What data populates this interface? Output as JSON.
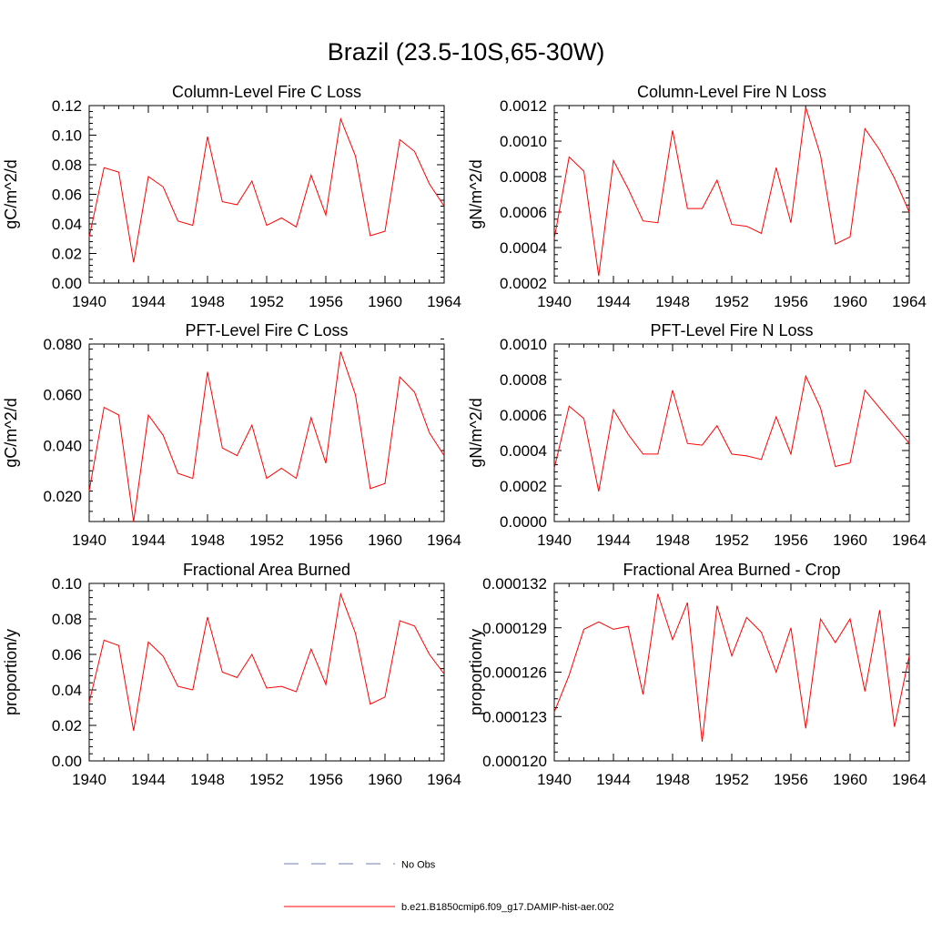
{
  "figure": {
    "title": "Brazil (23.5-10S,65-30W)",
    "line_color": "#ff0000",
    "obs_color": "#6f7fb0"
  },
  "legend": {
    "obs_label": "No Obs",
    "model_label": "b.e21.B1850cmip6.f09_g17.DAMIP-hist-aer.002"
  },
  "chart_data": [
    {
      "type": "line",
      "title": "Column-Level Fire C Loss",
      "ylabel": "gC/m^2/d",
      "xlim": [
        1940,
        1964
      ],
      "ylim": [
        0,
        0.12
      ],
      "yticks": [
        "0.00",
        "0.02",
        "0.04",
        "0.06",
        "0.08",
        "0.10",
        "0.12"
      ],
      "xticks": [
        "1940",
        "1944",
        "1948",
        "1952",
        "1956",
        "1960",
        "1964"
      ],
      "x": [
        1940,
        1941,
        1942,
        1943,
        1944,
        1945,
        1946,
        1947,
        1948,
        1949,
        1950,
        1951,
        1952,
        1953,
        1954,
        1955,
        1956,
        1957,
        1958,
        1959,
        1960,
        1961,
        1962,
        1963,
        1964
      ],
      "series": [
        {
          "values": [
            0.031,
            0.078,
            0.075,
            0.014,
            0.072,
            0.065,
            0.042,
            0.039,
            0.099,
            0.055,
            0.053,
            0.069,
            0.039,
            0.044,
            0.038,
            0.073,
            0.046,
            0.111,
            0.086,
            0.032,
            0.035,
            0.097,
            0.089,
            0.067,
            0.052
          ]
        }
      ]
    },
    {
      "type": "line",
      "title": "Column-Level Fire N Loss",
      "ylabel": "gN/m^2/d",
      "xlim": [
        1940,
        1964
      ],
      "ylim": [
        0.0002,
        0.0012
      ],
      "yticks": [
        "0.0002",
        "0.0004",
        "0.0006",
        "0.0008",
        "0.0010",
        "0.0012"
      ],
      "xticks": [
        "1940",
        "1944",
        "1948",
        "1952",
        "1956",
        "1960",
        "1964"
      ],
      "x": [
        1940,
        1941,
        1942,
        1943,
        1944,
        1945,
        1946,
        1947,
        1948,
        1949,
        1950,
        1951,
        1952,
        1953,
        1954,
        1955,
        1956,
        1957,
        1958,
        1959,
        1960,
        1961,
        1962,
        1963,
        1964
      ],
      "series": [
        {
          "values": [
            0.00045,
            0.00091,
            0.00083,
            0.00024,
            0.00089,
            0.00073,
            0.00055,
            0.00054,
            0.00106,
            0.00062,
            0.00062,
            0.00078,
            0.00053,
            0.00052,
            0.00048,
            0.00085,
            0.00054,
            0.00119,
            0.00092,
            0.00042,
            0.00046,
            0.00107,
            0.00095,
            0.00079,
            0.0006
          ]
        }
      ]
    },
    {
      "type": "line",
      "title": "PFT-Level Fire C Loss",
      "ylabel": "gC/m^2/d",
      "xlim": [
        1940,
        1964
      ],
      "ylim": [
        0.01,
        0.08
      ],
      "yticks": [
        "0.020",
        "0.040",
        "0.060",
        "0.080"
      ],
      "ytick_values": [
        0.02,
        0.04,
        0.06,
        0.08
      ],
      "xticks": [
        "1940",
        "1944",
        "1948",
        "1952",
        "1956",
        "1960",
        "1964"
      ],
      "x": [
        1940,
        1941,
        1942,
        1943,
        1944,
        1945,
        1946,
        1947,
        1948,
        1949,
        1950,
        1951,
        1952,
        1953,
        1954,
        1955,
        1956,
        1957,
        1958,
        1959,
        1960,
        1961,
        1962,
        1963,
        1964
      ],
      "series": [
        {
          "values": [
            0.022,
            0.055,
            0.052,
            0.01,
            0.052,
            0.044,
            0.029,
            0.027,
            0.069,
            0.039,
            0.036,
            0.048,
            0.027,
            0.031,
            0.027,
            0.051,
            0.033,
            0.077,
            0.06,
            0.023,
            0.025,
            0.067,
            0.061,
            0.045,
            0.036
          ]
        }
      ]
    },
    {
      "type": "line",
      "title": "PFT-Level Fire N Loss",
      "ylabel": "gN/m^2/d",
      "xlim": [
        1940,
        1964
      ],
      "ylim": [
        0,
        0.001
      ],
      "yticks": [
        "0.0000",
        "0.0002",
        "0.0004",
        "0.0006",
        "0.0008",
        "0.0010"
      ],
      "xticks": [
        "1940",
        "1944",
        "1948",
        "1952",
        "1956",
        "1960",
        "1964"
      ],
      "x": [
        1940,
        1941,
        1942,
        1943,
        1944,
        1945,
        1946,
        1947,
        1948,
        1949,
        1950,
        1951,
        1952,
        1953,
        1954,
        1955,
        1956,
        1957,
        1958,
        1959,
        1960,
        1961,
        1962,
        1963,
        1964
      ],
      "series": [
        {
          "values": [
            0.0003,
            0.00065,
            0.00058,
            0.00017,
            0.00063,
            0.00049,
            0.00038,
            0.00038,
            0.00074,
            0.00044,
            0.00043,
            0.00054,
            0.00038,
            0.00037,
            0.00035,
            0.00059,
            0.00038,
            0.00082,
            0.00064,
            0.00031,
            0.00033,
            0.00074,
            0.00064,
            0.00054,
            0.00044
          ]
        }
      ]
    },
    {
      "type": "line",
      "title": "Fractional Area Burned",
      "ylabel": "proportion/y",
      "xlim": [
        1940,
        1964
      ],
      "ylim": [
        0,
        0.1
      ],
      "yticks": [
        "0.00",
        "0.02",
        "0.04",
        "0.06",
        "0.08",
        "0.10"
      ],
      "xticks": [
        "1940",
        "1944",
        "1948",
        "1952",
        "1956",
        "1960",
        "1964"
      ],
      "x": [
        1940,
        1941,
        1942,
        1943,
        1944,
        1945,
        1946,
        1947,
        1948,
        1949,
        1950,
        1951,
        1952,
        1953,
        1954,
        1955,
        1956,
        1957,
        1958,
        1959,
        1960,
        1961,
        1962,
        1963,
        1964
      ],
      "series": [
        {
          "values": [
            0.033,
            0.068,
            0.065,
            0.017,
            0.067,
            0.059,
            0.042,
            0.04,
            0.081,
            0.05,
            0.047,
            0.06,
            0.041,
            0.042,
            0.039,
            0.063,
            0.043,
            0.094,
            0.072,
            0.032,
            0.036,
            0.079,
            0.076,
            0.06,
            0.049
          ]
        }
      ]
    },
    {
      "type": "line",
      "title": "Fractional Area Burned - Crop",
      "ylabel": "proportion/y",
      "xlim": [
        1940,
        1964
      ],
      "ylim": [
        0.00012,
        0.000132
      ],
      "yticks": [
        "0.000120",
        "0.000123",
        "0.000126",
        "0.000129",
        "0.000132"
      ],
      "xticks": [
        "1940",
        "1944",
        "1948",
        "1952",
        "1956",
        "1960",
        "1964"
      ],
      "x": [
        1940,
        1941,
        1942,
        1943,
        1944,
        1945,
        1946,
        1947,
        1948,
        1949,
        1950,
        1951,
        1952,
        1953,
        1954,
        1955,
        1956,
        1957,
        1958,
        1959,
        1960,
        1961,
        1962,
        1963,
        1964
      ],
      "series": [
        {
          "values": [
            0.0001233,
            0.0001258,
            0.0001289,
            0.0001294,
            0.0001289,
            0.0001291,
            0.0001245,
            0.0001313,
            0.0001282,
            0.0001307,
            0.0001213,
            0.0001305,
            0.0001271,
            0.0001297,
            0.0001287,
            0.000126,
            0.000129,
            0.0001222,
            0.0001296,
            0.000128,
            0.0001296,
            0.0001247,
            0.0001302,
            0.0001223,
            0.0001271
          ]
        }
      ]
    }
  ]
}
